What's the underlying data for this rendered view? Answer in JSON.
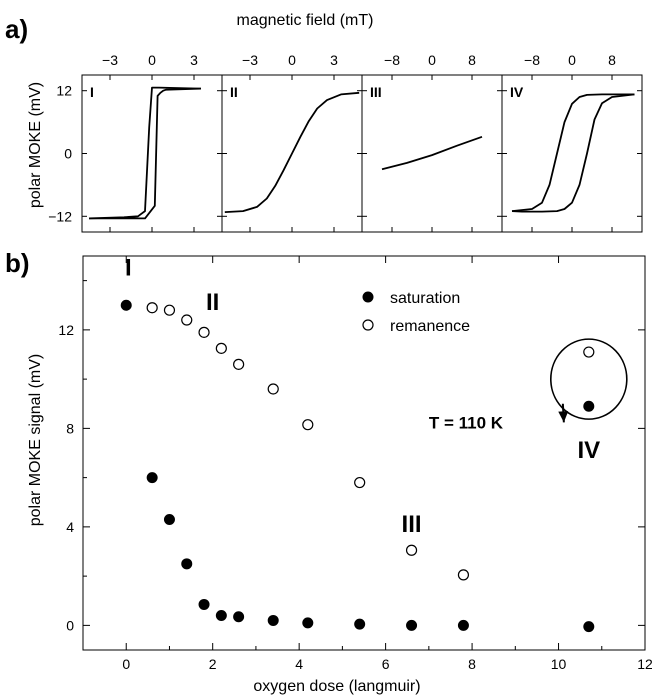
{
  "panel_labels": {
    "a": "a)",
    "b": "b)"
  },
  "chart_data": [
    {
      "type": "line",
      "panel": "a",
      "xlabel": "magnetic field (mT)",
      "ylabel": "polar MOKE (mV)",
      "ylim": [
        -15,
        15
      ],
      "yticks": [
        -12,
        0,
        12
      ],
      "grid": false,
      "subplots": [
        {
          "label": "I",
          "xlim": [
            -5,
            5
          ],
          "xticks": [
            -3,
            0,
            3
          ],
          "series": [
            {
              "x": [
                -4.5,
                -2,
                -1,
                -0.8,
                -0.5,
                -0.2,
                0,
                0.5,
                3.5
              ],
              "y": [
                -12.4,
                -12.2,
                -12.0,
                -11.6,
                -11.0,
                5,
                12.6,
                12.6,
                12.4
              ]
            },
            {
              "x": [
                3.5,
                1,
                0.8,
                0.6,
                0.4,
                0.2,
                -0.5,
                -2,
                -4.5
              ],
              "y": [
                12.4,
                12.2,
                12.0,
                11.6,
                11.0,
                -10,
                -12.4,
                -12.4,
                -12.4
              ]
            }
          ]
        },
        {
          "label": "II",
          "xlim": [
            -5,
            5
          ],
          "xticks": [
            -3,
            0,
            3
          ],
          "series": [
            {
              "x": [
                -4.8,
                -3.5,
                -2.5,
                -1.8,
                -1.2,
                -0.6,
                0,
                0.6,
                1.2,
                1.8,
                2.5,
                3.5,
                4.8
              ],
              "y": [
                -11.2,
                -11.0,
                -10.2,
                -8.6,
                -6.2,
                -3.2,
                0,
                3.2,
                6.2,
                8.6,
                10.2,
                11.3,
                11.6
              ]
            }
          ]
        },
        {
          "label": "III",
          "xlim": [
            -14,
            14
          ],
          "xticks": [
            -8,
            0,
            8
          ],
          "series": [
            {
              "x": [
                -10,
                -5,
                0,
                5,
                10
              ],
              "y": [
                -3.0,
                -1.8,
                -0.3,
                1.5,
                3.2
              ]
            }
          ]
        },
        {
          "label": "IV",
          "xlim": [
            -14,
            14
          ],
          "xticks": [
            -8,
            0,
            8
          ],
          "series": [
            {
              "x": [
                -12,
                -8,
                -6,
                -4.5,
                -3,
                -1.5,
                0,
                1.5,
                3,
                6,
                10,
                12.5
              ],
              "y": [
                -11.0,
                -10.6,
                -9.4,
                -6.0,
                0,
                6.0,
                9.5,
                10.8,
                11.2,
                11.3,
                11.3,
                11.3
              ]
            },
            {
              "x": [
                12.5,
                8,
                6,
                4.5,
                3,
                1.5,
                0,
                -1.5,
                -3,
                -6,
                -10,
                -12
              ],
              "y": [
                11.3,
                10.8,
                9.6,
                6.5,
                0,
                -6.0,
                -9.4,
                -10.6,
                -11.0,
                -11.1,
                -11.1,
                -11.0
              ]
            }
          ]
        }
      ]
    },
    {
      "type": "scatter",
      "panel": "b",
      "xlabel": "oxygen dose (langmuir)",
      "ylabel": "polar MOKE signal (mV)",
      "xlim": [
        -1,
        12
      ],
      "ylim": [
        -1,
        15
      ],
      "xticks": [
        0,
        2,
        4,
        6,
        8,
        10,
        12
      ],
      "yticks": [
        0,
        4,
        8,
        12
      ],
      "grid": false,
      "legend_position": "top-right",
      "series": [
        {
          "name": "saturation",
          "marker": "filled-circle",
          "x": [
            0,
            0.6,
            1.0,
            1.4,
            1.8,
            2.2,
            2.6,
            3.4,
            4.2,
            5.4,
            6.6,
            7.8,
            10.7
          ],
          "y": [
            13.0,
            6.0,
            4.3,
            2.5,
            0.85,
            0.4,
            0.35,
            0.2,
            0.1,
            0.05,
            0.0,
            0.0,
            -0.05
          ]
        },
        {
          "name": "remanence",
          "marker": "open-circle",
          "x": [
            0.6,
            1.0,
            1.4,
            1.8,
            2.2,
            2.6,
            3.4,
            4.2,
            5.4,
            6.6,
            7.8
          ],
          "y": [
            12.9,
            12.8,
            12.4,
            11.9,
            11.25,
            10.6,
            9.6,
            8.15,
            5.8,
            3.05,
            2.05
          ]
        },
        {
          "name": "T = 110 K",
          "markers": [
            "open-circle",
            "filled-circle"
          ],
          "x": [
            10.7,
            10.7
          ],
          "y": [
            11.1,
            8.9
          ]
        }
      ],
      "annotations": [
        {
          "text": "I",
          "x": 0.05,
          "y": 14.2
        },
        {
          "text": "II",
          "x": 2.0,
          "y": 12.8
        },
        {
          "text": "III",
          "x": 6.6,
          "y": 3.8
        },
        {
          "text": "IV",
          "x": 10.7,
          "y": 6.8
        },
        {
          "text": "T = 110 K",
          "x": 7.0,
          "y": 8.0,
          "arrow_to": [
            10.1,
            9.0
          ]
        }
      ]
    }
  ]
}
